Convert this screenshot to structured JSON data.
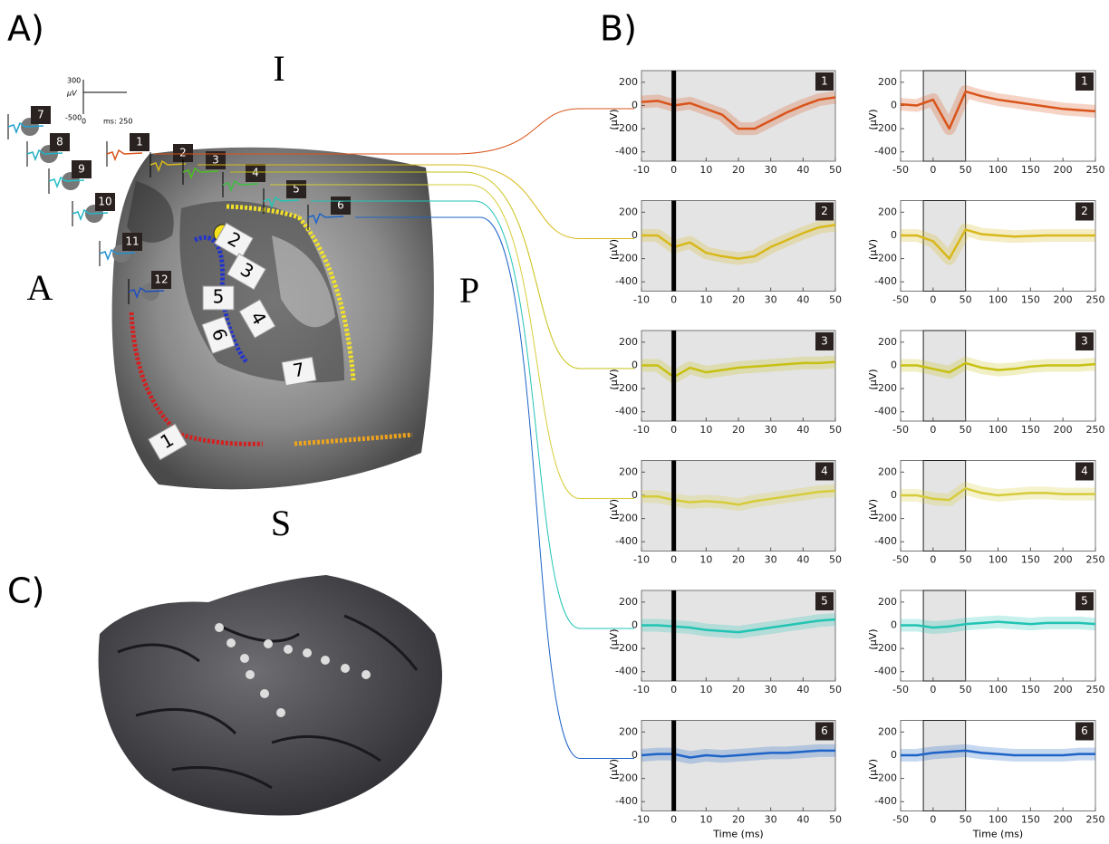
{
  "panel_a": {
    "label": "A)",
    "orientation": {
      "top": "I",
      "left": "A",
      "right": "P",
      "bottom": "S"
    },
    "scale": {
      "y_max": "300",
      "y_unit": "μV",
      "y_min": "-500",
      "x_min": "0",
      "x_label": "ms: 250"
    },
    "electrodes": [
      "1",
      "2",
      "3",
      "4",
      "5",
      "6",
      "7",
      "8",
      "9",
      "10",
      "11",
      "12"
    ],
    "strips": [
      "1",
      "2",
      "3",
      "4",
      "5",
      "6",
      "7"
    ]
  },
  "panel_b": {
    "label": "B)"
  },
  "panel_c": {
    "label": "C)"
  },
  "chart_data": [
    {
      "type": "line",
      "panel_label": "1",
      "ylabel": "(μV)",
      "color": "#d9541a",
      "x": [
        -10,
        -5,
        0,
        5,
        10,
        15,
        20,
        25,
        30,
        35,
        40,
        45,
        50
      ],
      "values": [
        30,
        40,
        0,
        20,
        -30,
        -80,
        -200,
        -200,
        -130,
        -60,
        0,
        50,
        70
      ],
      "xlim": [
        -10,
        50
      ],
      "ylim": [
        -480,
        300
      ],
      "xticks": [
        -10,
        0,
        10,
        20,
        30,
        40,
        50
      ],
      "yticks": [
        -400,
        -200,
        0,
        200
      ],
      "marker_x": 0
    },
    {
      "type": "line",
      "panel_label": "1",
      "ylabel": "(μV)",
      "color": "#d9541a",
      "x": [
        -50,
        -25,
        0,
        25,
        50,
        75,
        100,
        125,
        150,
        175,
        200,
        225,
        250
      ],
      "values": [
        10,
        0,
        50,
        -200,
        120,
        80,
        50,
        30,
        10,
        -10,
        -30,
        -40,
        -50
      ],
      "xlim": [
        -50,
        250
      ],
      "ylim": [
        -480,
        300
      ],
      "xticks": [
        -50,
        0,
        50,
        100,
        150,
        200,
        250
      ],
      "yticks": [
        -400,
        -200,
        0,
        200
      ],
      "shade_x": [
        -15,
        50
      ]
    },
    {
      "type": "line",
      "panel_label": "2",
      "ylabel": "(μV)",
      "color": "#d8b81a",
      "x": [
        -10,
        -5,
        0,
        5,
        10,
        15,
        20,
        25,
        30,
        35,
        40,
        45,
        50
      ],
      "values": [
        0,
        0,
        -100,
        -60,
        -150,
        -180,
        -200,
        -180,
        -100,
        -40,
        20,
        70,
        90
      ],
      "xlim": [
        -10,
        50
      ],
      "ylim": [
        -480,
        300
      ],
      "xticks": [
        -10,
        0,
        10,
        20,
        30,
        40,
        50
      ],
      "yticks": [
        -400,
        -200,
        0,
        200
      ],
      "marker_x": 0
    },
    {
      "type": "line",
      "panel_label": "2",
      "ylabel": "(μV)",
      "color": "#d8b81a",
      "x": [
        -50,
        -25,
        0,
        25,
        50,
        75,
        100,
        125,
        150,
        175,
        200,
        225,
        250
      ],
      "values": [
        0,
        0,
        -50,
        -200,
        50,
        10,
        0,
        -10,
        -5,
        0,
        0,
        0,
        0
      ],
      "xlim": [
        -50,
        250
      ],
      "ylim": [
        -480,
        300
      ],
      "xticks": [
        -50,
        0,
        50,
        100,
        150,
        200,
        250
      ],
      "yticks": [
        -400,
        -200,
        0,
        200
      ],
      "shade_x": [
        -15,
        50
      ]
    },
    {
      "type": "line",
      "panel_label": "3",
      "ylabel": "(μV)",
      "color": "#c8c012",
      "x": [
        -10,
        -5,
        0,
        5,
        10,
        15,
        20,
        25,
        30,
        35,
        40,
        45,
        50
      ],
      "values": [
        0,
        0,
        -100,
        -20,
        -60,
        -40,
        -20,
        -10,
        0,
        10,
        20,
        20,
        30
      ],
      "xlim": [
        -10,
        50
      ],
      "ylim": [
        -480,
        300
      ],
      "xticks": [
        -10,
        0,
        10,
        20,
        30,
        40,
        50
      ],
      "yticks": [
        -400,
        -200,
        0,
        200
      ],
      "marker_x": 0
    },
    {
      "type": "line",
      "panel_label": "3",
      "ylabel": "(μV)",
      "color": "#c8c012",
      "x": [
        -50,
        -25,
        0,
        25,
        50,
        75,
        100,
        125,
        150,
        175,
        200,
        225,
        250
      ],
      "values": [
        0,
        0,
        -30,
        -60,
        20,
        -20,
        -40,
        -30,
        -10,
        0,
        0,
        0,
        10
      ],
      "xlim": [
        -50,
        250
      ],
      "ylim": [
        -480,
        300
      ],
      "xticks": [
        -50,
        0,
        50,
        100,
        150,
        200,
        250
      ],
      "yticks": [
        -400,
        -200,
        0,
        200
      ],
      "shade_x": [
        -15,
        50
      ]
    },
    {
      "type": "line",
      "panel_label": "4",
      "ylabel": "(μV)",
      "color": "#d6cc3a",
      "x": [
        -10,
        -5,
        0,
        5,
        10,
        15,
        20,
        25,
        30,
        35,
        40,
        45,
        50
      ],
      "values": [
        -10,
        -10,
        -40,
        -60,
        -50,
        -60,
        -80,
        -50,
        -30,
        -10,
        10,
        30,
        40
      ],
      "xlim": [
        -10,
        50
      ],
      "ylim": [
        -480,
        300
      ],
      "xticks": [
        -10,
        0,
        10,
        20,
        30,
        40,
        50
      ],
      "yticks": [
        -400,
        -200,
        0,
        200
      ],
      "marker_x": 0
    },
    {
      "type": "line",
      "panel_label": "4",
      "ylabel": "(μV)",
      "color": "#d6cc3a",
      "x": [
        -50,
        -25,
        0,
        25,
        50,
        75,
        100,
        125,
        150,
        175,
        200,
        225,
        250
      ],
      "values": [
        0,
        0,
        -30,
        -40,
        60,
        20,
        0,
        10,
        20,
        20,
        10,
        10,
        10
      ],
      "xlim": [
        -50,
        250
      ],
      "ylim": [
        -480,
        300
      ],
      "xticks": [
        -50,
        0,
        50,
        100,
        150,
        200,
        250
      ],
      "yticks": [
        -400,
        -200,
        0,
        200
      ],
      "shade_x": [
        -15,
        50
      ]
    },
    {
      "type": "line",
      "panel_label": "5",
      "ylabel": "(μV)",
      "color": "#22c4b4",
      "x": [
        -10,
        -5,
        0,
        5,
        10,
        15,
        20,
        25,
        30,
        35,
        40,
        45,
        50
      ],
      "values": [
        0,
        0,
        -10,
        -20,
        -40,
        -50,
        -60,
        -40,
        -20,
        0,
        20,
        40,
        50
      ],
      "xlim": [
        -10,
        50
      ],
      "ylim": [
        -480,
        300
      ],
      "xticks": [
        -10,
        0,
        10,
        20,
        30,
        40,
        50
      ],
      "yticks": [
        -400,
        -200,
        0,
        200
      ],
      "marker_x": 0
    },
    {
      "type": "line",
      "panel_label": "5",
      "ylabel": "(μV)",
      "color": "#22c4b4",
      "x": [
        -50,
        -25,
        0,
        25,
        50,
        75,
        100,
        125,
        150,
        175,
        200,
        225,
        250
      ],
      "values": [
        0,
        0,
        -20,
        -10,
        10,
        20,
        30,
        20,
        10,
        20,
        20,
        20,
        10
      ],
      "xlim": [
        -50,
        250
      ],
      "ylim": [
        -480,
        300
      ],
      "xticks": [
        -50,
        0,
        50,
        100,
        150,
        200,
        250
      ],
      "yticks": [
        -400,
        -200,
        0,
        200
      ],
      "shade_x": [
        -15,
        50
      ]
    },
    {
      "type": "line",
      "panel_label": "6",
      "ylabel": "(μV)",
      "xlabel": "Time (ms)",
      "color": "#1e64c8",
      "x": [
        -10,
        -5,
        0,
        5,
        10,
        15,
        20,
        25,
        30,
        35,
        40,
        45,
        50
      ],
      "values": [
        0,
        10,
        10,
        -20,
        0,
        -10,
        0,
        10,
        20,
        20,
        30,
        40,
        40
      ],
      "xlim": [
        -10,
        50
      ],
      "ylim": [
        -480,
        300
      ],
      "xticks": [
        -10,
        0,
        10,
        20,
        30,
        40,
        50
      ],
      "yticks": [
        -400,
        -200,
        0,
        200
      ],
      "marker_x": 0
    },
    {
      "type": "line",
      "panel_label": "6",
      "ylabel": "(μV)",
      "xlabel": "Time (ms)",
      "color": "#1e64c8",
      "x": [
        -50,
        -25,
        0,
        25,
        50,
        75,
        100,
        125,
        150,
        175,
        200,
        225,
        250
      ],
      "values": [
        0,
        0,
        20,
        30,
        40,
        20,
        10,
        0,
        0,
        0,
        0,
        10,
        10
      ],
      "xlim": [
        -50,
        250
      ],
      "ylim": [
        -480,
        300
      ],
      "xticks": [
        -50,
        0,
        50,
        100,
        150,
        200,
        250
      ],
      "yticks": [
        -400,
        -200,
        0,
        200
      ],
      "shade_x": [
        -15,
        50
      ]
    }
  ]
}
